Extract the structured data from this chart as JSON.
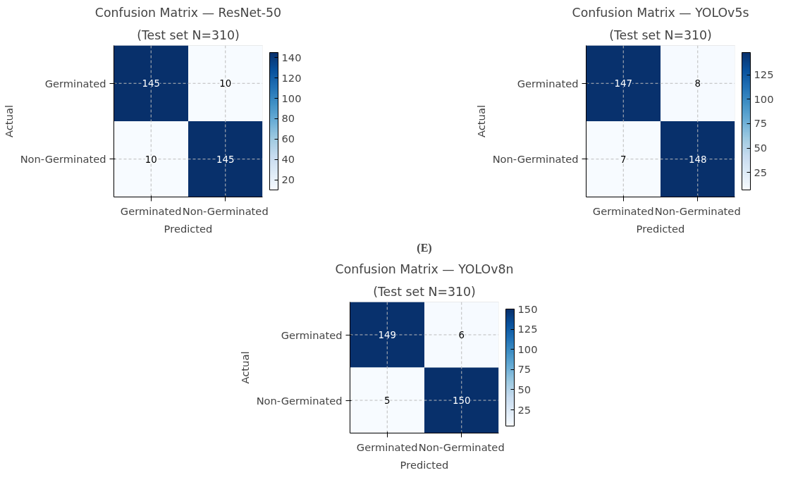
{
  "chart_data": [
    {
      "type": "heatmap",
      "title": "Confusion Matrix — ResNet-50",
      "subtitle": "(Test set N=310)",
      "xlabel": "Predicted",
      "ylabel": "Actual",
      "categories": [
        "Germinated",
        "Non-Germinated"
      ],
      "y_categories": [
        "Germinated",
        "Non-Germinated"
      ],
      "cells": [
        [
          145,
          10
        ],
        [
          10,
          145
        ]
      ],
      "data_labels": true,
      "clim": [
        10,
        145
      ],
      "cticks": [
        20,
        40,
        60,
        80,
        100,
        120,
        140
      ],
      "grid": true
    },
    {
      "type": "heatmap",
      "title": "Confusion Matrix — YOLOv5s",
      "subtitle": "(Test set N=310)",
      "xlabel": "Predicted",
      "ylabel": "Actual",
      "categories": [
        "Germinated",
        "Non-Germinated"
      ],
      "y_categories": [
        "Germinated",
        "Non-Germinated"
      ],
      "cells": [
        [
          147,
          8
        ],
        [
          7,
          148
        ]
      ],
      "data_labels": true,
      "clim": [
        7,
        148
      ],
      "cticks": [
        25,
        50,
        75,
        100,
        125
      ],
      "grid": true
    },
    {
      "type": "heatmap",
      "title": "Confusion Matrix — YOLOv8n",
      "subtitle": "(Test set N=310)",
      "annotations": [
        "(E)"
      ],
      "xlabel": "Predicted",
      "ylabel": "Actual",
      "categories": [
        "Germinated",
        "Non-Germinated"
      ],
      "y_categories": [
        "Germinated",
        "Non-Germinated"
      ],
      "cells": [
        [
          149,
          6
        ],
        [
          5,
          150
        ]
      ],
      "data_labels": true,
      "clim": [
        5,
        150
      ],
      "cticks": [
        25,
        50,
        75,
        100,
        125,
        150
      ],
      "grid": true
    }
  ]
}
